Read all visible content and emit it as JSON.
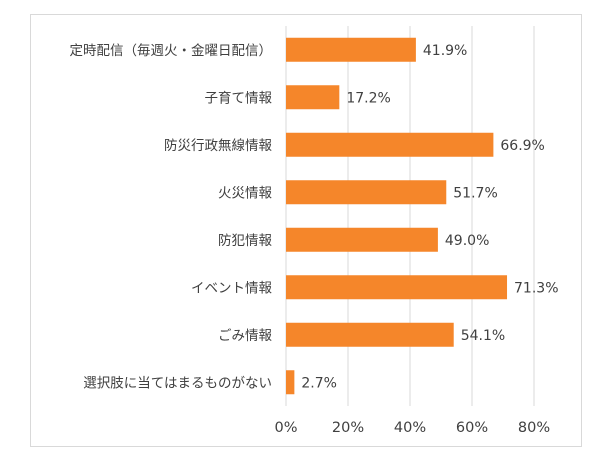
{
  "chart_data": {
    "type": "bar",
    "orientation": "horizontal",
    "categories": [
      "定時配信（毎週火・金曜日配信）",
      "子育て情報",
      "防災行政無線情報",
      "火災情報",
      "防犯情報",
      "イベント情報",
      "ごみ情報",
      "選択肢に当てはまるものがない"
    ],
    "values": [
      41.9,
      17.2,
      66.9,
      51.7,
      49.0,
      71.3,
      54.1,
      2.7
    ],
    "value_labels": [
      "41.9%",
      "17.2%",
      "66.9%",
      "51.7%",
      "49.0%",
      "71.3%",
      "54.1%",
      "2.7%"
    ],
    "xlim": [
      0,
      80
    ],
    "xticks": [
      0,
      20,
      40,
      60,
      80
    ],
    "xtick_labels": [
      "0%",
      "20%",
      "40%",
      "60%",
      "80%"
    ],
    "grid": true,
    "colors": {
      "bar": "#F5862A",
      "grid": "#d9d9d9",
      "text": "#404040"
    }
  }
}
